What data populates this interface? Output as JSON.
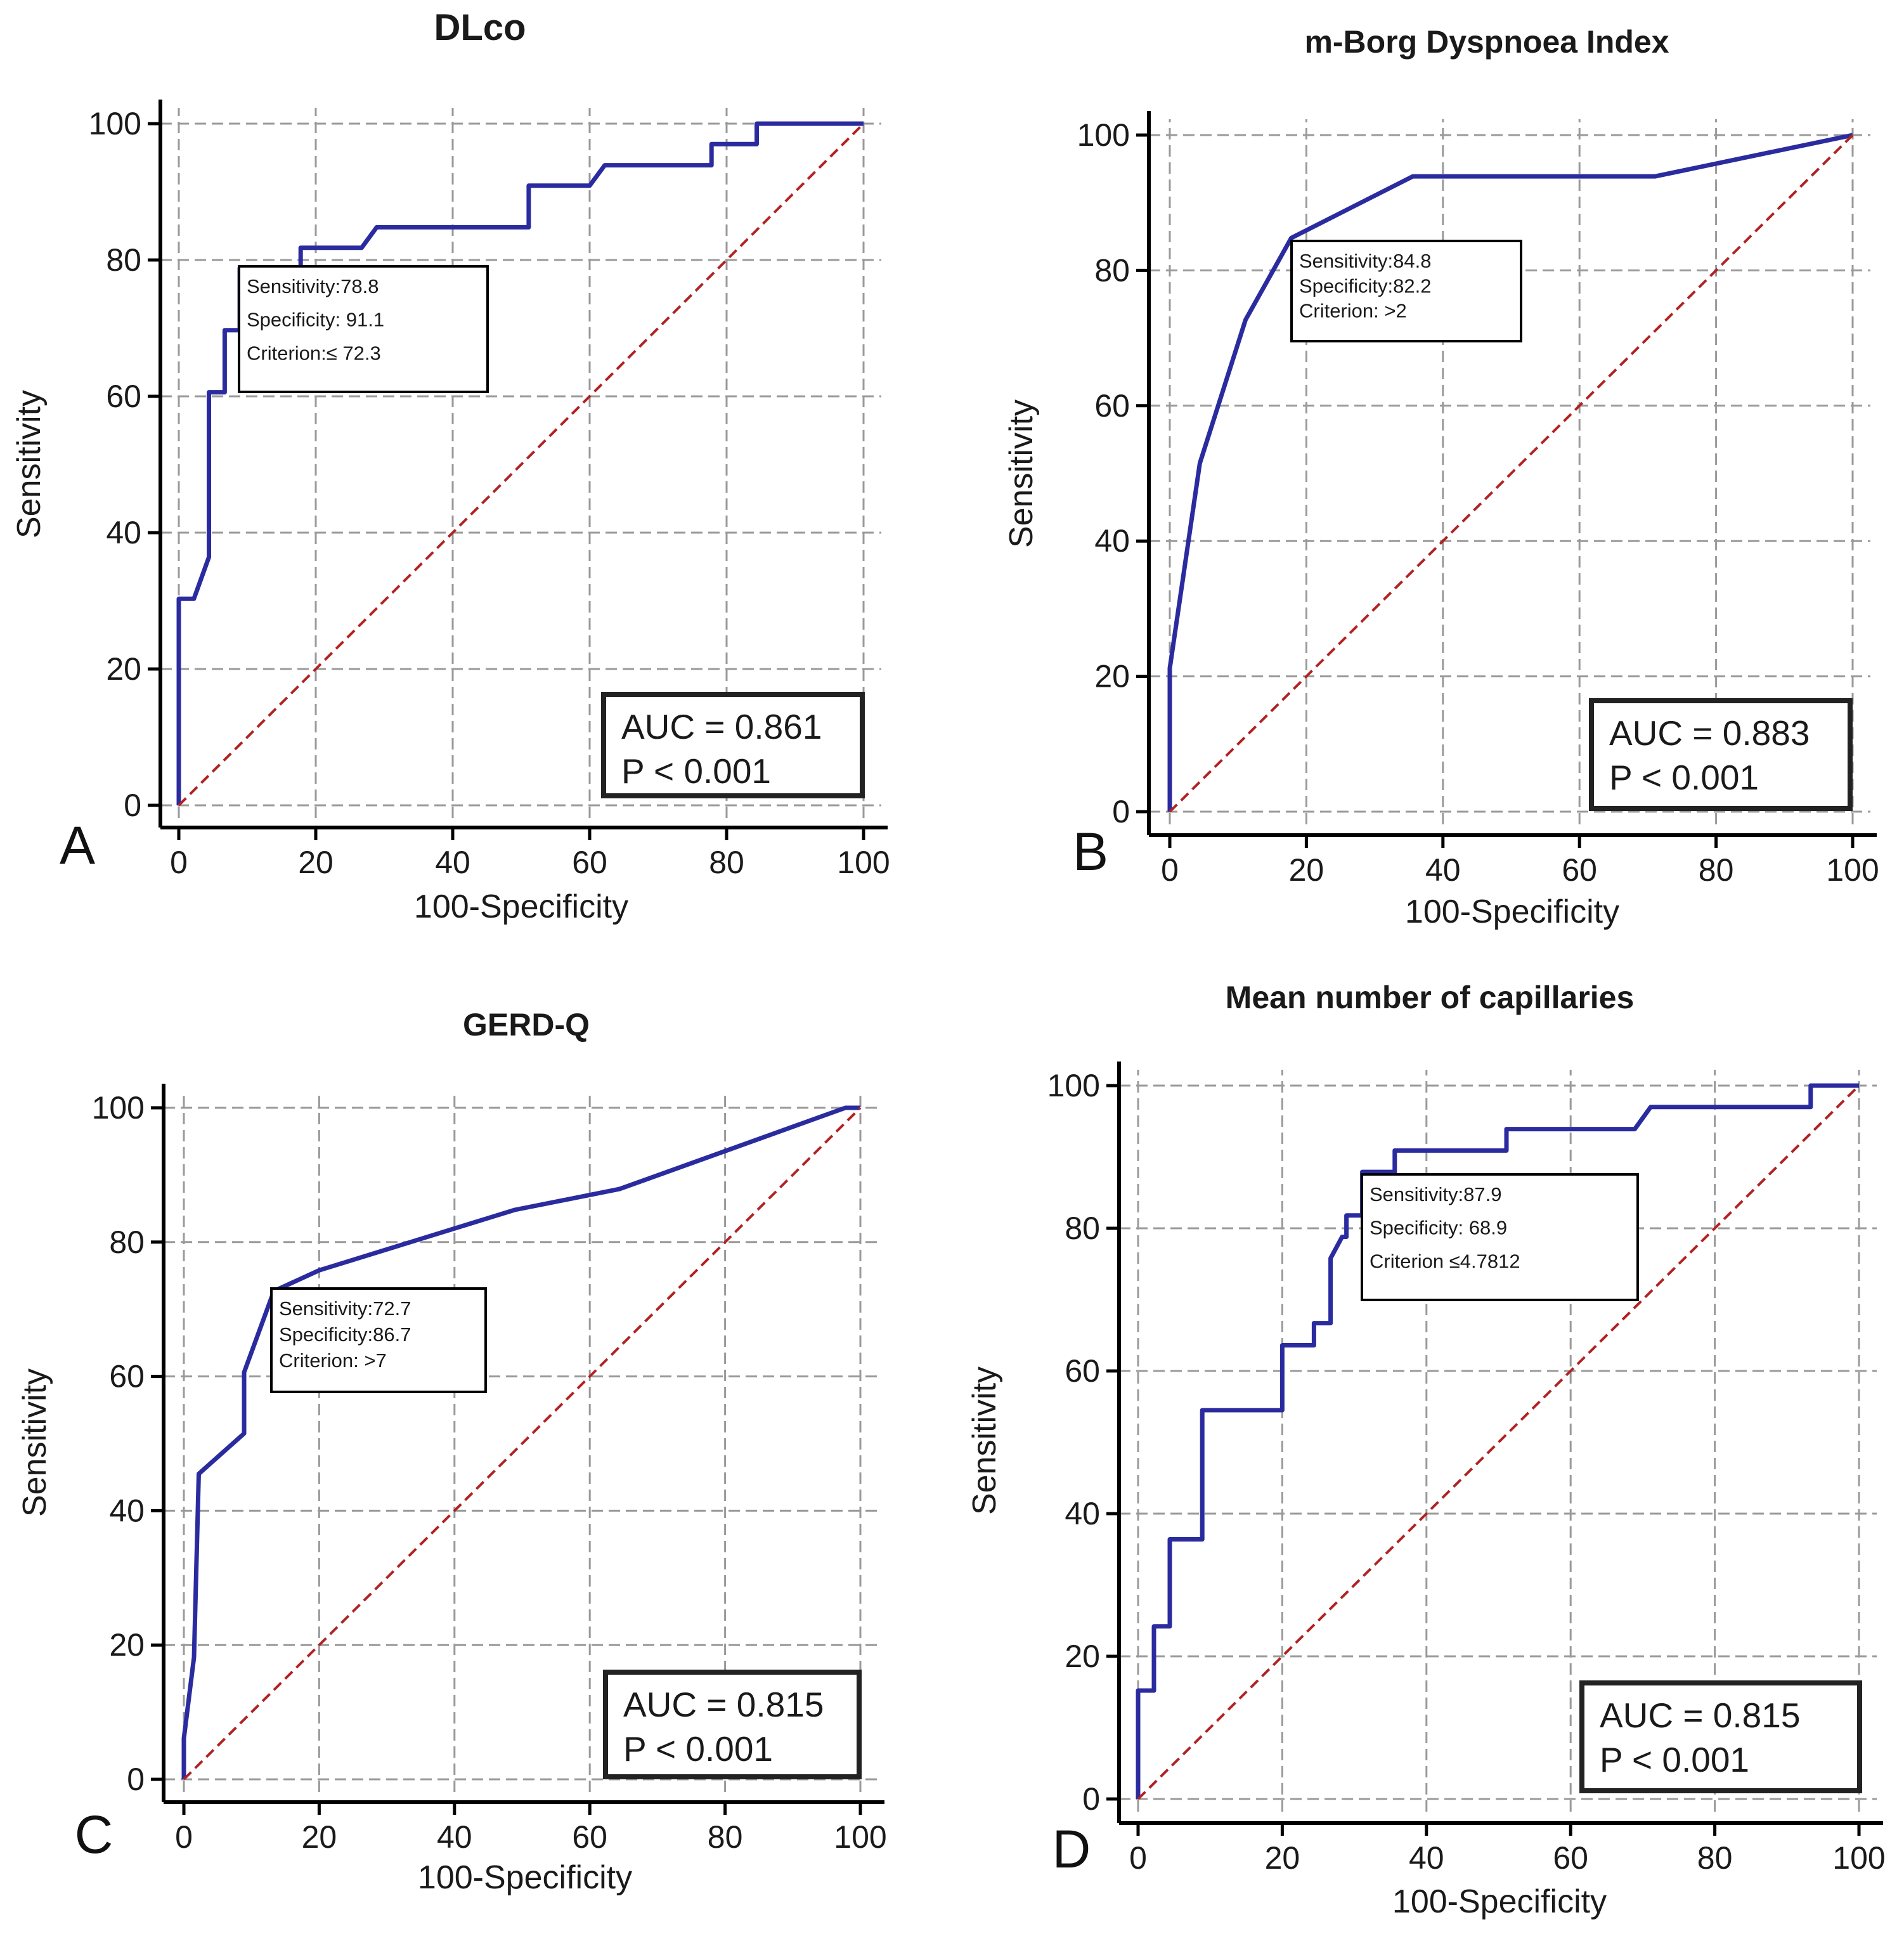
{
  "figure": {
    "x_ticks": [
      "0",
      "20",
      "40",
      "60",
      "80",
      "100"
    ],
    "y_ticks": [
      "0",
      "20",
      "40",
      "60",
      "80",
      "100"
    ]
  },
  "chart_data": [
    {
      "type": "line",
      "panel_label": "A",
      "title": "DLco",
      "xlabel": "100-Specificity",
      "ylabel": "Sensitivity",
      "xlim": [
        0,
        100
      ],
      "ylim": [
        0,
        100
      ],
      "grid": true,
      "series": [
        {
          "name": "ROC curve",
          "color": "#2b2ba0",
          "x": [
            0,
            0,
            2.2,
            2.2,
            4.4,
            4.4,
            6.7,
            6.7,
            8.9,
            8.9,
            17.8,
            17.8,
            26.7,
            28.9,
            28.9,
            51.1,
            51.1,
            60,
            62.2,
            62.2,
            77.8,
            77.8,
            84.4,
            84.4,
            100
          ],
          "y": [
            0,
            30.3,
            30.3,
            30.3,
            36.4,
            60.6,
            60.6,
            69.7,
            69.7,
            78.8,
            78.8,
            81.8,
            81.8,
            84.8,
            84.8,
            84.8,
            90.9,
            90.9,
            93.9,
            93.9,
            93.9,
            97,
            97,
            100,
            100
          ]
        },
        {
          "name": "Reference line",
          "color": "#b22222",
          "x": [
            0,
            100
          ],
          "y": [
            0,
            100
          ]
        }
      ],
      "annotation": {
        "lines": [
          "Sensitivity:78.8",
          "Specificity: 91.1",
          "Criterion:≤ 72.3"
        ]
      },
      "stats": {
        "auc": "AUC = 0.861",
        "p": "P < 0.001"
      }
    },
    {
      "type": "line",
      "panel_label": "B",
      "title": "m-Borg Dyspnoea Index",
      "xlabel": "100-Specificity",
      "ylabel": "Sensitivity",
      "xlim": [
        0,
        100
      ],
      "ylim": [
        0,
        100
      ],
      "grid": true,
      "series": [
        {
          "name": "ROC curve",
          "color": "#2b2ba0",
          "x": [
            0,
            0,
            4.4,
            11.1,
            17.8,
            35.6,
            71.1,
            100
          ],
          "y": [
            0,
            21.2,
            51.5,
            72.7,
            84.8,
            93.9,
            93.9,
            100
          ]
        },
        {
          "name": "Reference line",
          "color": "#b22222",
          "x": [
            0,
            100
          ],
          "y": [
            0,
            100
          ]
        }
      ],
      "annotation": {
        "lines": [
          "Sensitivity:84.8",
          "Specificity:82.2",
          "Criterion: >2"
        ]
      },
      "stats": {
        "auc": "AUC = 0.883",
        "p": "P < 0.001"
      }
    },
    {
      "type": "line",
      "panel_label": "C",
      "title": "GERD-Q",
      "xlabel": "100-Specificity",
      "ylabel": "Sensitivity",
      "xlim": [
        0,
        100
      ],
      "ylim": [
        0,
        100
      ],
      "grid": true,
      "series": [
        {
          "name": "ROC curve",
          "color": "#2b2ba0",
          "x": [
            0,
            0,
            1.5,
            2.2,
            8.9,
            8.9,
            13.3,
            20,
            48.9,
            64.4,
            97.8,
            100
          ],
          "y": [
            0,
            6.1,
            18.2,
            45.5,
            51.5,
            60.6,
            72.7,
            75.8,
            84.8,
            87.9,
            100,
            100
          ]
        },
        {
          "name": "Reference line",
          "color": "#b22222",
          "x": [
            0,
            100
          ],
          "y": [
            0,
            100
          ]
        }
      ],
      "annotation": {
        "lines": [
          "Sensitivity:72.7",
          "Specificity:86.7",
          "Criterion: >7"
        ]
      },
      "stats": {
        "auc": "AUC = 0.815",
        "p": "P < 0.001"
      }
    },
    {
      "type": "line",
      "panel_label": "D",
      "title": "Mean number of capillaries",
      "xlabel": "100-Specificity",
      "ylabel": "Sensitivity",
      "xlim": [
        0,
        100
      ],
      "ylim": [
        0,
        100
      ],
      "grid": true,
      "series": [
        {
          "name": "ROC curve",
          "color": "#2b2ba0",
          "x": [
            0,
            0,
            2.2,
            2.2,
            4.4,
            4.4,
            8.9,
            8.9,
            20,
            20,
            24.4,
            24.4,
            26.7,
            26.7,
            28.3,
            28.9,
            28.9,
            31.1,
            31.1,
            35.6,
            35.6,
            51.1,
            51.1,
            68.9,
            71.1,
            93.3,
            93.3,
            100
          ],
          "y": [
            0,
            15.2,
            15.2,
            24.2,
            24.2,
            36.4,
            36.4,
            54.5,
            54.5,
            63.6,
            63.6,
            66.7,
            66.7,
            75.8,
            78.8,
            78.8,
            81.8,
            81.8,
            87.9,
            87.9,
            90.9,
            90.9,
            93.9,
            93.9,
            97,
            97,
            100,
            100
          ]
        },
        {
          "name": "Reference line",
          "color": "#b22222",
          "x": [
            0,
            100
          ],
          "y": [
            0,
            100
          ]
        }
      ],
      "annotation": {
        "lines": [
          "Sensitivity:87.9",
          "Specificity: 68.9",
          "Criterion ≤4.7812"
        ]
      },
      "stats": {
        "auc": "AUC = 0.815",
        "p": "P < 0.001"
      }
    }
  ]
}
